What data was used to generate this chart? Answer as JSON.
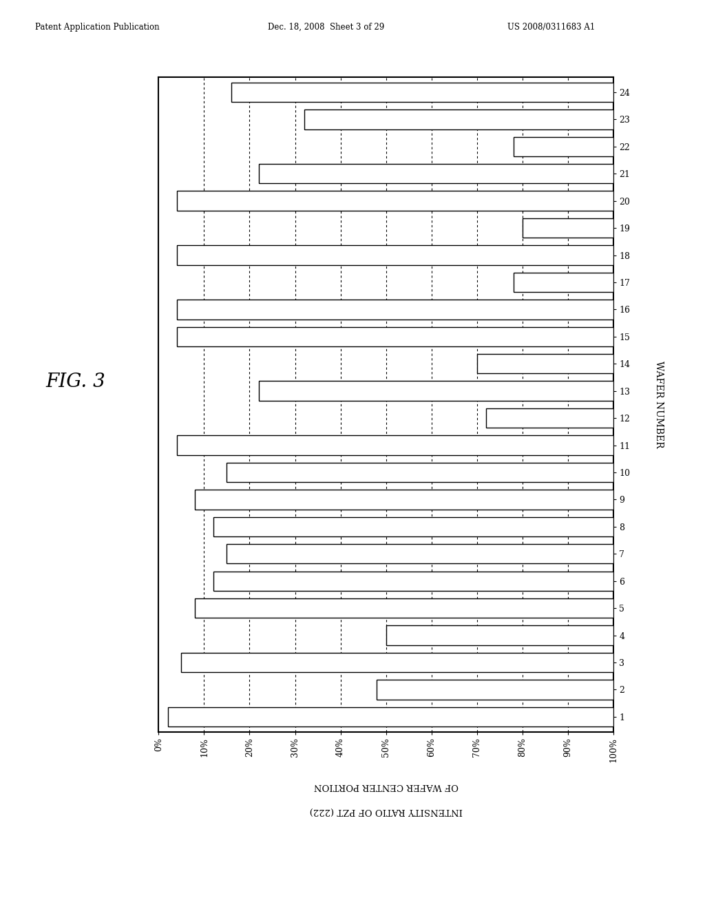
{
  "header_left": "Patent Application Publication",
  "header_mid": "Dec. 18, 2008  Sheet 3 of 29",
  "header_right": "US 2008/0311683 A1",
  "fig_label": "FIG. 3",
  "ylabel": "WAFER NUMBER",
  "xlabel_line1": "INTENSITY RATIO OF PZT (222)",
  "xlabel_line2": "OF WAFER CENTER PORTION",
  "x_tick_labels": [
    "100%",
    "90%",
    "80%",
    "70%",
    "60%",
    "50%",
    "40%",
    "30%",
    "20%",
    "10%",
    "0%"
  ],
  "x_tick_positions": [
    0,
    10,
    20,
    30,
    40,
    50,
    60,
    70,
    80,
    90,
    100
  ],
  "wafer_numbers": [
    1,
    2,
    3,
    4,
    5,
    6,
    7,
    8,
    9,
    10,
    11,
    12,
    13,
    14,
    15,
    16,
    17,
    18,
    19,
    20,
    21,
    22,
    23,
    24
  ],
  "values": [
    98,
    52,
    95,
    50,
    92,
    88,
    85,
    88,
    92,
    85,
    96,
    28,
    78,
    30,
    96,
    96,
    22,
    96,
    20,
    96,
    78,
    22,
    68,
    84
  ],
  "bar_color": "#ffffff",
  "bar_edge_color": "#000000",
  "background_color": "#ffffff",
  "grid_color": "#000000",
  "grid_positions": [
    10,
    20,
    30,
    40,
    50,
    60,
    70,
    80,
    90
  ],
  "fig_width": 10.24,
  "fig_height": 13.2
}
